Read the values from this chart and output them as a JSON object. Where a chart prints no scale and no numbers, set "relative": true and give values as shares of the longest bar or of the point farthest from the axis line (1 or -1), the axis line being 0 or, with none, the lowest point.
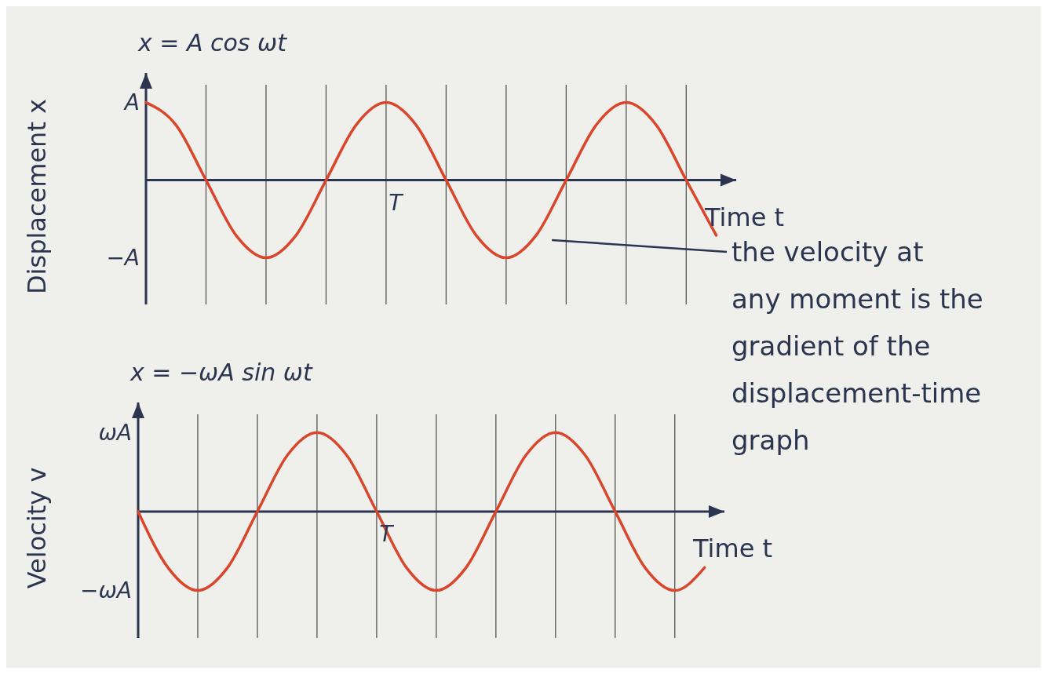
{
  "chart_data": [
    {
      "type": "line",
      "title": "x = A cos ωt",
      "ylabel": "Displacement x",
      "xlabel": "Time t",
      "relative": true,
      "categories": [
        null,
        null,
        null,
        null,
        null,
        null,
        null,
        null,
        null,
        null,
        null,
        null,
        null,
        null,
        null,
        null,
        null,
        null,
        null,
        null
      ],
      "series": [
        {
          "color": "#d9462c",
          "values": [
            1,
            0.71,
            0,
            -0.71,
            -1,
            -0.71,
            0,
            0.71,
            1,
            0.71,
            0,
            -0.71,
            -1,
            -0.71,
            0,
            0.71,
            1,
            0.71,
            0,
            -0.71
          ]
        }
      ],
      "grid": "x",
      "marker": "none",
      "line_style": "solid",
      "annotations": [
        "T",
        "A",
        "−A",
        "the velocity at any moment is the gradient of the displacement-time graph"
      ]
    },
    {
      "type": "line",
      "title": "x = −ωA sin ωt",
      "ylabel": "Velocity v",
      "xlabel": "Time t",
      "relative": true,
      "categories": [
        null,
        null,
        null,
        null,
        null,
        null,
        null,
        null,
        null,
        null,
        null,
        null,
        null,
        null,
        null,
        null,
        null,
        null,
        null,
        null
      ],
      "series": [
        {
          "color": "#d9462c",
          "values": [
            0,
            -0.71,
            -1,
            -0.71,
            0,
            0.71,
            1,
            0.71,
            0,
            -0.71,
            -1,
            -0.71,
            0,
            0.71,
            1,
            0.71,
            0,
            -0.71,
            -1,
            -0.71
          ]
        }
      ],
      "grid": "x",
      "marker": "none",
      "line_style": "solid",
      "annotations": [
        "T",
        "ωA",
        "−ωA"
      ]
    }
  ]
}
